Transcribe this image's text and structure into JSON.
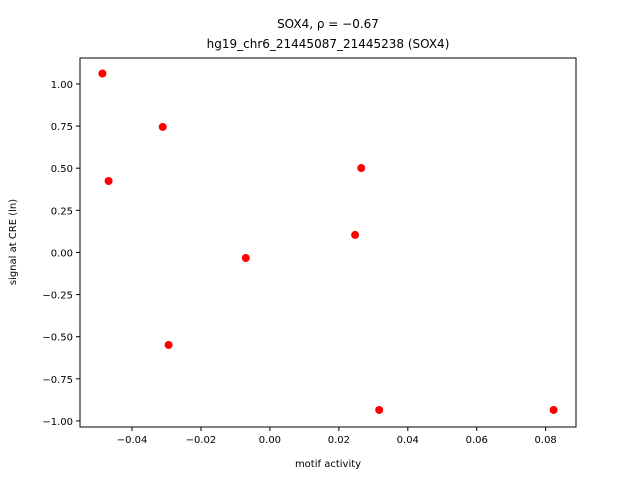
{
  "chart_data": {
    "type": "scatter",
    "title": "SOX4, ρ = −0.67",
    "subtitle": "hg19_chr6_21445087_21445238 (SOX4)",
    "x_label": "motif activity",
    "y_label": "signal at CRE (ln)",
    "color": "#ff0000",
    "x": [
      -0.0486,
      -0.0468,
      -0.0311,
      -0.0294,
      -0.007,
      0.0247,
      0.0265,
      0.0317,
      0.0823
    ],
    "values": [
      1.062,
      0.424,
      0.745,
      -0.549,
      -0.033,
      0.104,
      0.501,
      -0.935,
      -0.935
    ],
    "xlim": [
      -0.0551,
      0.0888
    ],
    "ylim": [
      -1.036,
      1.154
    ],
    "xticks": [
      {
        "value": -0.04,
        "label": "−0.04"
      },
      {
        "value": -0.02,
        "label": "−0.02"
      },
      {
        "value": 0,
        "label": "0.00"
      },
      {
        "value": 0.02,
        "label": "0.02"
      },
      {
        "value": 0.04,
        "label": "0.04"
      },
      {
        "value": 0.06,
        "label": "0.06"
      },
      {
        "value": 0.08,
        "label": "0.08"
      }
    ],
    "yticks": [
      {
        "value": -1,
        "label": "−1.00"
      },
      {
        "value": -0.75,
        "label": "−0.75"
      },
      {
        "value": -0.5,
        "label": "−0.50"
      },
      {
        "value": -0.25,
        "label": "−0.25"
      },
      {
        "value": 0,
        "label": "0.00"
      },
      {
        "value": 0.25,
        "label": "0.25"
      },
      {
        "value": 0.5,
        "label": "0.50"
      },
      {
        "value": 0.75,
        "label": "0.75"
      },
      {
        "value": 1,
        "label": "1.00"
      }
    ]
  }
}
